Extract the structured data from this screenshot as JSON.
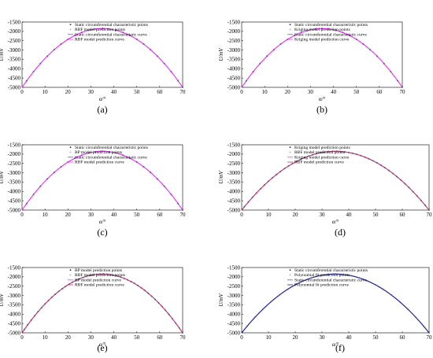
{
  "figure": {
    "panels": [
      {
        "label": "(a)"
      },
      {
        "label": "(b)"
      },
      {
        "label": "(c)"
      },
      {
        "label": "(d)"
      },
      {
        "label": "(e)"
      },
      {
        "label": "(f)"
      }
    ]
  },
  "chart_data": [
    {
      "type": "line",
      "panel": "(a)",
      "xlabel": "α/°",
      "ylabel": "U/mV",
      "xlim": [
        0,
        70
      ],
      "ylim": [
        -5000,
        -1500
      ],
      "xticks": [
        0,
        10,
        20,
        30,
        40,
        50,
        60,
        70
      ],
      "yticks": [
        -1500,
        -2000,
        -2500,
        -3000,
        -3500,
        -4000,
        -4500,
        -5000
      ],
      "legend_position": "top-left",
      "curve_model": {
        "peak_x": 35,
        "peak_y": -1850,
        "edge_x": 70,
        "edge_y": -5000
      },
      "x": [
        2,
        5,
        8,
        11,
        14,
        17,
        20,
        23,
        26,
        29,
        32,
        35,
        38,
        41,
        44,
        47,
        50,
        53,
        56,
        59,
        62,
        65,
        68,
        70
      ],
      "series": [
        {
          "name": "Static circumferential characteristic points",
          "kind": "points",
          "color": "#1a1a80",
          "marker": "dot"
        },
        {
          "name": "RBF model prediction points",
          "kind": "points",
          "color": "#888888",
          "marker": "plus"
        },
        {
          "name": "Static circumferential characteristic curve",
          "kind": "curve",
          "color": "#5555ff"
        },
        {
          "name": "RBF model prediction curve",
          "kind": "curve",
          "color": "#ff33ff"
        }
      ]
    },
    {
      "type": "line",
      "panel": "(b)",
      "xlabel": "α/°",
      "ylabel": "U/mV",
      "xlim": [
        0,
        70
      ],
      "ylim": [
        -5000,
        -1500
      ],
      "xticks": [
        0,
        10,
        20,
        30,
        40,
        50,
        60,
        70
      ],
      "yticks": [
        -1500,
        -2000,
        -2500,
        -3000,
        -3500,
        -4000,
        -4500,
        -5000
      ],
      "legend_position": "top-left",
      "curve_model": {
        "peak_x": 35,
        "peak_y": -1850,
        "edge_x": 70,
        "edge_y": -5000
      },
      "x": [
        2,
        5,
        8,
        11,
        14,
        17,
        20,
        23,
        26,
        29,
        32,
        35,
        38,
        41,
        44,
        47,
        50,
        53,
        56,
        59,
        62,
        65,
        68,
        70
      ],
      "series": [
        {
          "name": "Static circumferential characteristic points",
          "kind": "points",
          "color": "#1a1a80",
          "marker": "dot"
        },
        {
          "name": "Kriging model prediction points",
          "kind": "points",
          "color": "#888888",
          "marker": "plus"
        },
        {
          "name": "Static circumferential characteristic curve",
          "kind": "curve",
          "color": "#5555ff"
        },
        {
          "name": "Kriging model prediction curve",
          "kind": "curve",
          "color": "#ff33ff"
        }
      ]
    },
    {
      "type": "line",
      "panel": "(c)",
      "xlabel": "α/°",
      "ylabel": "U/mV",
      "xlim": [
        0,
        70
      ],
      "ylim": [
        -5000,
        -1500
      ],
      "xticks": [
        0,
        10,
        20,
        30,
        40,
        50,
        60,
        70
      ],
      "yticks": [
        -1500,
        -2000,
        -2500,
        -3000,
        -3500,
        -4000,
        -4500,
        -5000
      ],
      "legend_position": "top-left",
      "curve_model": {
        "peak_x": 35,
        "peak_y": -1850,
        "edge_x": 70,
        "edge_y": -5000
      },
      "x": [
        2,
        5,
        8,
        11,
        14,
        17,
        20,
        23,
        26,
        29,
        32,
        35,
        38,
        41,
        44,
        47,
        50,
        53,
        56,
        59,
        62,
        65,
        68,
        70
      ],
      "series": [
        {
          "name": "Static circumferential characteristic points",
          "kind": "points",
          "color": "#1a1a80",
          "marker": "dot"
        },
        {
          "name": "BP model prediction points",
          "kind": "points",
          "color": "#888888",
          "marker": "plus"
        },
        {
          "name": "Static circumferential characteristic curve",
          "kind": "curve",
          "color": "#5555ff"
        },
        {
          "name": "RBF model prediction curve",
          "kind": "curve",
          "color": "#ff33ff"
        }
      ]
    },
    {
      "type": "line",
      "panel": "(d)",
      "xlabel": "α/°",
      "ylabel": "U/mV",
      "xlim": [
        0,
        70
      ],
      "ylim": [
        -5000,
        -1500
      ],
      "xticks": [
        0,
        10,
        20,
        30,
        40,
        50,
        60,
        70
      ],
      "yticks": [
        -1500,
        -2000,
        -2500,
        -3000,
        -3500,
        -4000,
        -4500,
        -5000
      ],
      "legend_position": "top-left",
      "curve_model": {
        "peak_x": 35,
        "peak_y": -1850,
        "edge_x": 70,
        "edge_y": -5000
      },
      "x": [
        1,
        2.5,
        4,
        5.5,
        7,
        8.5,
        10,
        11.5,
        13,
        14.5,
        16,
        17.5,
        19,
        20.5,
        22,
        23.5,
        25,
        26.5,
        28,
        29.5,
        31,
        32.5,
        34,
        35.5,
        37,
        38.5,
        40,
        41.5,
        43,
        44.5,
        46,
        47.5,
        49,
        50.5,
        52,
        53.5,
        55,
        56.5,
        58,
        59.5,
        61,
        62.5,
        64,
        65.5,
        67,
        68.5,
        70
      ],
      "series": [
        {
          "name": "Kriging model prediction points",
          "kind": "points",
          "color": "#1a1a80",
          "marker": "dot"
        },
        {
          "name": "RBF model prediction points",
          "kind": "points",
          "color": "#888888",
          "marker": "plus"
        },
        {
          "name": "Kriging model prediction curve",
          "kind": "curve",
          "color": "#ff33ff"
        },
        {
          "name": "RBF model prediction curve",
          "kind": "curve",
          "color": "#cc3366"
        }
      ]
    },
    {
      "type": "line",
      "panel": "(e)",
      "xlabel": "α/°",
      "ylabel": "U/mV",
      "xlim": [
        0,
        70
      ],
      "ylim": [
        -5000,
        -1500
      ],
      "xticks": [
        0,
        10,
        20,
        30,
        40,
        50,
        60,
        70
      ],
      "yticks": [
        -1500,
        -2000,
        -2500,
        -3000,
        -3500,
        -4000,
        -4500,
        -5000
      ],
      "legend_position": "top-left",
      "curve_model": {
        "peak_x": 35,
        "peak_y": -1850,
        "edge_x": 70,
        "edge_y": -5000
      },
      "x": [
        1,
        2.5,
        4,
        5.5,
        7,
        8.5,
        10,
        11.5,
        13,
        14.5,
        16,
        17.5,
        19,
        20.5,
        22,
        23.5,
        25,
        26.5,
        28,
        29.5,
        31,
        32.5,
        34,
        35.5,
        37,
        38.5,
        40,
        41.5,
        43,
        44.5,
        46,
        47.5,
        49,
        50.5,
        52,
        53.5,
        55,
        56.5,
        58,
        59.5,
        61,
        62.5,
        64,
        65.5,
        67,
        68.5,
        70
      ],
      "series": [
        {
          "name": "BP model prediction points",
          "kind": "points",
          "color": "#1a1a80",
          "marker": "dot"
        },
        {
          "name": "RBF model prediction points",
          "kind": "points",
          "color": "#888888",
          "marker": "plus"
        },
        {
          "name": "BP model prediction curve",
          "kind": "curve",
          "color": "#ff33ff"
        },
        {
          "name": "RBF model prediction curve",
          "kind": "curve",
          "color": "#cc3366"
        }
      ]
    },
    {
      "type": "line",
      "panel": "(f)",
      "xlabel": "α/°",
      "ylabel": "U/mV",
      "xlim": [
        0,
        70
      ],
      "ylim": [
        -5000,
        -1500
      ],
      "xticks": [
        0,
        10,
        20,
        30,
        40,
        50,
        60,
        70
      ],
      "yticks": [
        -1500,
        -2000,
        -2500,
        -3000,
        -3500,
        -4000,
        -4500,
        -5000
      ],
      "legend_position": "top-left",
      "curve_model": {
        "peak_x": 35,
        "peak_y": -1850,
        "edge_x": 70,
        "edge_y": -5000
      },
      "x": [
        2,
        5,
        8,
        11,
        14,
        17,
        20,
        23,
        26,
        29,
        32,
        35,
        38,
        41,
        44,
        47,
        50,
        53,
        56,
        59,
        62,
        65,
        68,
        70
      ],
      "series": [
        {
          "name": "Static circumferential characteristic points",
          "kind": "points",
          "color": "#1a1a80",
          "marker": "dot"
        },
        {
          "name": "Polynomial fit prediction points",
          "kind": "points",
          "color": "#888888",
          "marker": "plus"
        },
        {
          "name": "Static circumferential characteristic curve",
          "kind": "curve",
          "color": "#5555ff"
        },
        {
          "name": "Polynomial fit prediction curve",
          "kind": "curve",
          "color": "#1a1a99"
        }
      ]
    }
  ]
}
